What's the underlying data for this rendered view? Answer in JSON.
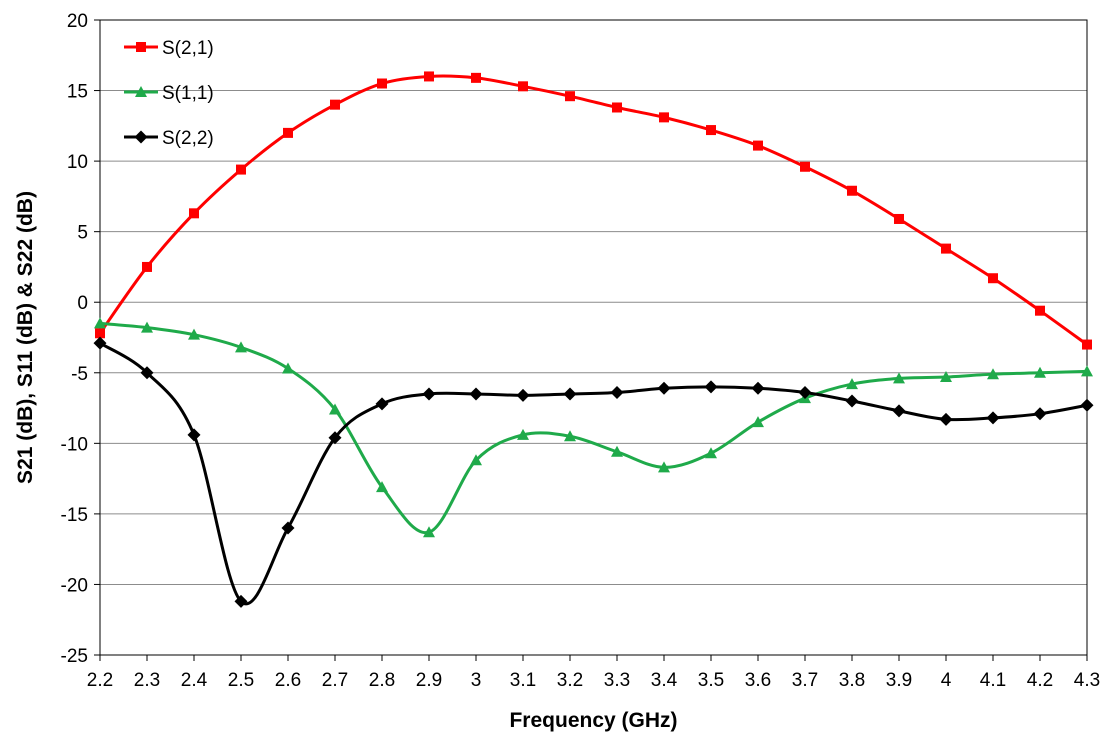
{
  "chart_data": {
    "type": "line",
    "xlabel": "Frequency (GHz)",
    "ylabel": "S21 (dB), S11 (dB) & S22 (dB)",
    "xlim": [
      2.2,
      4.3
    ],
    "ylim": [
      -25,
      20
    ],
    "x_ticks": [
      "2.2",
      "2.3",
      "2.4",
      "2.5",
      "2.6",
      "2.7",
      "2.8",
      "2.9",
      "3",
      "3.1",
      "3.2",
      "3.3",
      "3.4",
      "3.5",
      "3.6",
      "3.7",
      "3.8",
      "3.9",
      "4",
      "4.1",
      "4.2",
      "4.3"
    ],
    "y_ticks": [
      "20",
      "15",
      "10",
      "5",
      "0",
      "-5",
      "-10",
      "-15",
      "-20",
      "-25"
    ],
    "grid": "horizontal",
    "legend_position": "top-left",
    "x": [
      2.2,
      2.3,
      2.4,
      2.5,
      2.6,
      2.7,
      2.8,
      2.9,
      3.0,
      3.1,
      3.2,
      3.3,
      3.4,
      3.5,
      3.6,
      3.7,
      3.8,
      3.9,
      4.0,
      4.1,
      4.2,
      4.3
    ],
    "series": [
      {
        "name": "S(2,1)",
        "color": "#ff0000",
        "marker": "square",
        "values": [
          -2.2,
          2.5,
          6.3,
          9.4,
          12.0,
          14.0,
          15.5,
          16.0,
          15.9,
          15.3,
          14.6,
          13.8,
          13.1,
          12.2,
          11.1,
          9.6,
          7.9,
          5.9,
          3.8,
          1.7,
          -0.6,
          -3.0
        ]
      },
      {
        "name": "S(1,1)",
        "color": "#1faa4a",
        "marker": "triangle",
        "values": [
          -1.5,
          -1.8,
          -2.3,
          -3.2,
          -4.7,
          -7.6,
          -13.1,
          -16.3,
          -11.2,
          -9.4,
          -9.5,
          -10.6,
          -11.7,
          -10.7,
          -8.5,
          -6.8,
          -5.8,
          -5.4,
          -5.3,
          -5.1,
          -5.0,
          -4.9
        ]
      },
      {
        "name": "S(2,2)",
        "color": "#000000",
        "marker": "diamond",
        "values": [
          -2.9,
          -5.0,
          -9.4,
          -21.2,
          -16.0,
          -9.6,
          -7.2,
          -6.5,
          -6.5,
          -6.6,
          -6.5,
          -6.4,
          -6.1,
          -6.0,
          -6.1,
          -6.4,
          -7.0,
          -7.7,
          -8.3,
          -8.2,
          -7.9,
          -7.3
        ]
      }
    ]
  }
}
